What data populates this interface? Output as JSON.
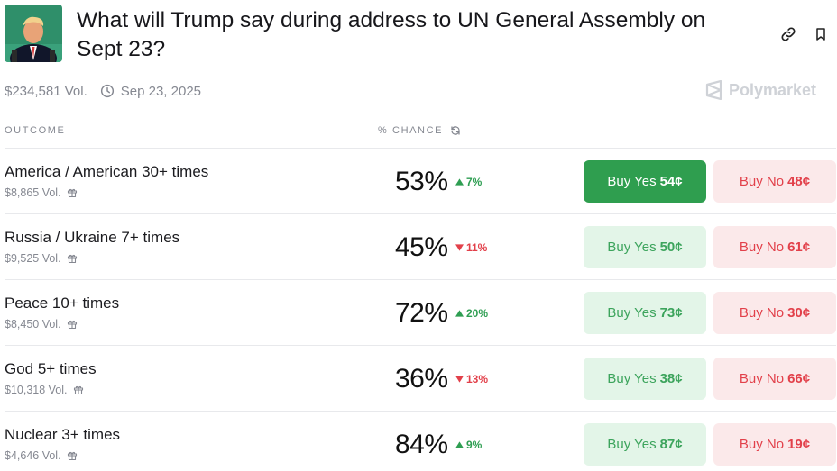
{
  "market": {
    "title": "What will Trump say during address to UN General Assembly on Sept 23?",
    "volume": "$234,581 Vol.",
    "date": "Sep 23, 2025",
    "brand": "Polymarket"
  },
  "columns": {
    "outcome": "OUTCOME",
    "chance": "% CHANCE"
  },
  "outcomes": [
    {
      "name": "America / American 30+ times",
      "volume": "$8,865 Vol.",
      "chance": "53%",
      "delta": "7%",
      "direction": "up",
      "yes_label": "Buy Yes",
      "yes_price": "54¢",
      "no_label": "Buy No",
      "no_price": "48¢"
    },
    {
      "name": "Russia / Ukraine 7+ times",
      "volume": "$9,525 Vol.",
      "chance": "45%",
      "delta": "11%",
      "direction": "down",
      "yes_label": "Buy Yes",
      "yes_price": "50¢",
      "no_label": "Buy No",
      "no_price": "61¢"
    },
    {
      "name": "Peace 10+ times",
      "volume": "$8,450 Vol.",
      "chance": "72%",
      "delta": "20%",
      "direction": "up",
      "yes_label": "Buy Yes",
      "yes_price": "73¢",
      "no_label": "Buy No",
      "no_price": "30¢"
    },
    {
      "name": "God 5+ times",
      "volume": "$10,318 Vol.",
      "chance": "36%",
      "delta": "13%",
      "direction": "down",
      "yes_label": "Buy Yes",
      "yes_price": "38¢",
      "no_label": "Buy No",
      "no_price": "66¢"
    },
    {
      "name": "Nuclear 3+ times",
      "volume": "$4,646 Vol.",
      "chance": "84%",
      "delta": "9%",
      "direction": "up",
      "yes_label": "Buy Yes",
      "yes_price": "87¢",
      "no_label": "Buy No",
      "no_price": "19¢"
    }
  ],
  "colors": {
    "yes_active": "#2f9e4f",
    "yes_bg": "#e3f5e8",
    "no_bg": "#fbe9ea",
    "up": "#2e9e52",
    "down": "#e2404a"
  }
}
